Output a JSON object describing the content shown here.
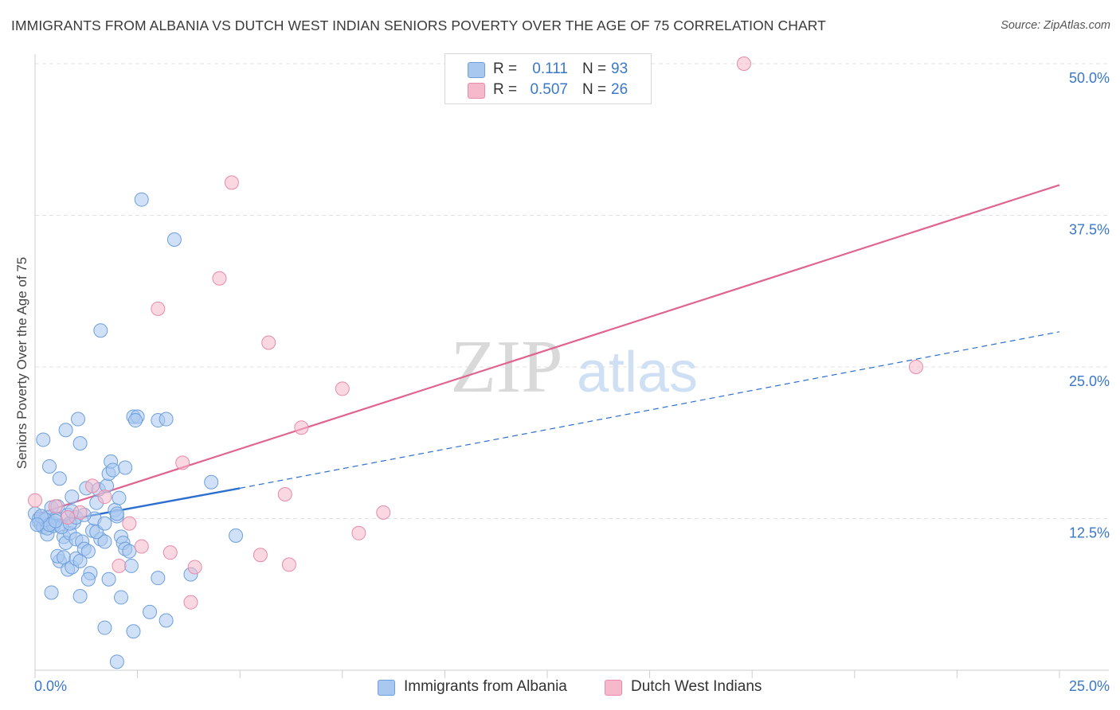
{
  "header": {
    "title": "IMMIGRANTS FROM ALBANIA VS DUTCH WEST INDIAN SENIORS POVERTY OVER THE AGE OF 75 CORRELATION CHART",
    "source": "Source: ZipAtlas.com"
  },
  "legend": {
    "rows": [
      {
        "r_label": "R =",
        "r_value": "0.111",
        "n_label": "N =",
        "n_value": "93",
        "color": "#a9c8f0"
      },
      {
        "r_label": "R =",
        "r_value": "0.507",
        "n_label": "N =",
        "n_value": "26",
        "color": "#f6b8cb"
      }
    ]
  },
  "bottom_legend": {
    "albania": "Immigrants from Albania",
    "dutch": "Dutch West Indians"
  },
  "watermark": {
    "zip": "ZIP",
    "atlas": "atlas"
  },
  "colors": {
    "albania_fill": "#a9c8f0",
    "albania_stroke": "#6d9fdc",
    "albania_line": "#2c6fcf",
    "dutch_fill": "#f6b8cb",
    "dutch_stroke": "#e98aa8",
    "dutch_line": "#e06490",
    "tick_label": "#3a78c9",
    "grid": "#e2e2e2"
  },
  "chart_data": {
    "type": "scatter",
    "title": "IMMIGRANTS FROM ALBANIA VS DUTCH WEST INDIAN SENIORS POVERTY OVER THE AGE OF 75 CORRELATION CHART",
    "xlabel": "",
    "ylabel": "Seniors Poverty Over the Age of 75",
    "xlim": [
      0,
      25
    ],
    "ylim": [
      0,
      50
    ],
    "x_tick_labels": [
      "0.0%",
      "25.0%"
    ],
    "y_ticks": [
      12.5,
      25.0,
      37.5,
      50.0
    ],
    "y_tick_labels": [
      "12.5%",
      "25.0%",
      "37.5%",
      "50.0%"
    ],
    "grid": "horizontal dashed",
    "legend_position": "top-center",
    "series": [
      {
        "name": "Immigrants from Albania",
        "r": 0.111,
        "n": 93,
        "trend_solid": {
          "x": [
            0,
            5.0
          ],
          "y": [
            11.9,
            15.0
          ]
        },
        "trend_dashed": {
          "x": [
            5.0,
            25.0
          ],
          "y": [
            15.0,
            27.9
          ]
        },
        "points": [
          [
            0.0,
            12.9
          ],
          [
            0.1,
            12.2
          ],
          [
            0.1,
            12.5
          ],
          [
            0.15,
            12.0
          ],
          [
            0.2,
            11.8
          ],
          [
            0.3,
            12.6
          ],
          [
            0.2,
            19.0
          ],
          [
            0.35,
            16.8
          ],
          [
            0.4,
            13.4
          ],
          [
            0.45,
            12.1
          ],
          [
            0.5,
            12.5
          ],
          [
            0.3,
            11.2
          ],
          [
            0.6,
            11.9
          ],
          [
            0.55,
            13.5
          ],
          [
            0.6,
            15.8
          ],
          [
            0.7,
            11.0
          ],
          [
            0.75,
            10.5
          ],
          [
            0.8,
            12.8
          ],
          [
            0.85,
            11.3
          ],
          [
            0.9,
            14.3
          ],
          [
            0.95,
            12.2
          ],
          [
            1.0,
            10.8
          ],
          [
            1.05,
            20.7
          ],
          [
            1.1,
            18.7
          ],
          [
            1.15,
            10.6
          ],
          [
            1.25,
            15.0
          ],
          [
            0.75,
            19.8
          ],
          [
            0.6,
            9.0
          ],
          [
            0.55,
            9.4
          ],
          [
            0.7,
            9.3
          ],
          [
            0.8,
            8.3
          ],
          [
            0.9,
            8.5
          ],
          [
            1.0,
            9.2
          ],
          [
            1.1,
            9.0
          ],
          [
            1.2,
            10.0
          ],
          [
            1.3,
            9.8
          ],
          [
            1.35,
            8.0
          ],
          [
            1.4,
            11.5
          ],
          [
            1.45,
            12.5
          ],
          [
            1.5,
            13.8
          ],
          [
            1.55,
            14.9
          ],
          [
            1.6,
            10.8
          ],
          [
            1.7,
            10.6
          ],
          [
            1.75,
            15.2
          ],
          [
            1.8,
            16.2
          ],
          [
            1.85,
            17.2
          ],
          [
            1.9,
            16.5
          ],
          [
            1.95,
            13.2
          ],
          [
            2.0,
            12.7
          ],
          [
            2.05,
            14.2
          ],
          [
            2.1,
            11.0
          ],
          [
            2.15,
            10.5
          ],
          [
            2.2,
            10.0
          ],
          [
            2.3,
            9.8
          ],
          [
            2.35,
            8.6
          ],
          [
            2.4,
            20.9
          ],
          [
            2.5,
            20.9
          ],
          [
            2.45,
            20.6
          ],
          [
            2.2,
            16.7
          ],
          [
            1.6,
            28.0
          ],
          [
            2.6,
            38.8
          ],
          [
            3.4,
            35.5
          ],
          [
            3.0,
            20.6
          ],
          [
            3.2,
            20.7
          ],
          [
            4.3,
            15.5
          ],
          [
            4.9,
            11.1
          ],
          [
            3.8,
            7.9
          ],
          [
            3.0,
            7.6
          ],
          [
            2.8,
            4.8
          ],
          [
            3.2,
            4.1
          ],
          [
            2.4,
            3.2
          ],
          [
            1.7,
            3.5
          ],
          [
            2.0,
            0.7
          ],
          [
            0.4,
            6.4
          ],
          [
            1.1,
            6.1
          ],
          [
            1.3,
            7.5
          ],
          [
            1.8,
            7.5
          ],
          [
            2.1,
            6.0
          ],
          [
            0.3,
            11.7
          ],
          [
            0.45,
            11.9
          ],
          [
            0.65,
            11.8
          ],
          [
            0.85,
            12.1
          ],
          [
            1.0,
            12.6
          ],
          [
            1.2,
            12.8
          ],
          [
            1.5,
            11.4
          ],
          [
            1.7,
            12.1
          ],
          [
            2.0,
            12.9
          ],
          [
            0.9,
            13.1
          ],
          [
            0.25,
            12.4
          ],
          [
            0.35,
            12.0
          ],
          [
            0.15,
            12.7
          ],
          [
            0.5,
            12.3
          ],
          [
            0.05,
            12.0
          ]
        ]
      },
      {
        "name": "Dutch West Indians",
        "r": 0.507,
        "n": 26,
        "trend": {
          "x": [
            0,
            25.0
          ],
          "y": [
            12.8,
            40.0
          ]
        },
        "points": [
          [
            0.0,
            14.0
          ],
          [
            1.4,
            15.2
          ],
          [
            1.7,
            14.3
          ],
          [
            2.3,
            12.1
          ],
          [
            2.6,
            10.2
          ],
          [
            2.05,
            8.6
          ],
          [
            3.3,
            9.7
          ],
          [
            3.6,
            17.1
          ],
          [
            3.9,
            8.5
          ],
          [
            3.8,
            5.6
          ],
          [
            5.5,
            9.5
          ],
          [
            6.2,
            8.7
          ],
          [
            6.1,
            14.5
          ],
          [
            6.5,
            20.0
          ],
          [
            7.5,
            23.2
          ],
          [
            7.9,
            11.3
          ],
          [
            8.5,
            13.0
          ],
          [
            5.7,
            27.0
          ],
          [
            3.0,
            29.8
          ],
          [
            4.5,
            32.3
          ],
          [
            4.8,
            40.2
          ],
          [
            17.3,
            50.0
          ],
          [
            21.5,
            25.0
          ],
          [
            0.5,
            13.5
          ],
          [
            1.1,
            13.0
          ],
          [
            0.8,
            12.6
          ]
        ]
      }
    ]
  }
}
